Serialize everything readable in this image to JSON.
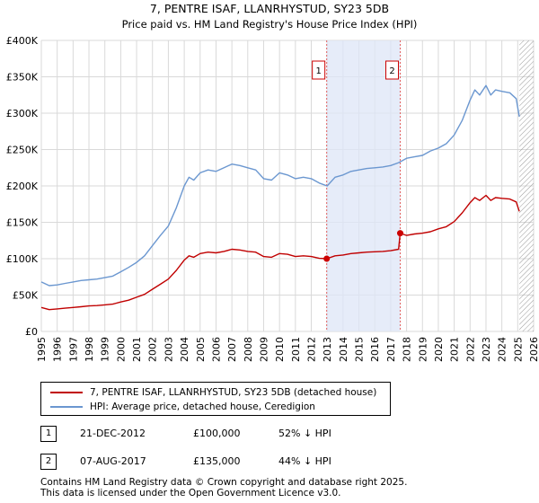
{
  "chart_data": {
    "type": "line",
    "title": "7, PENTRE ISAF, LLANRHYSTUD, SY23 5DB",
    "subtitle": "Price paid vs. HM Land Registry's House Price Index (HPI)",
    "xlim": [
      1995,
      2026
    ],
    "ylim": [
      0,
      400000
    ],
    "yticks": [
      0,
      50000,
      100000,
      150000,
      200000,
      250000,
      300000,
      350000,
      400000
    ],
    "ytick_labels": [
      "£0",
      "£50K",
      "£100K",
      "£150K",
      "£200K",
      "£250K",
      "£300K",
      "£350K",
      "£400K"
    ],
    "xticks": [
      1995,
      1996,
      1997,
      1998,
      1999,
      2000,
      2001,
      2002,
      2003,
      2004,
      2005,
      2006,
      2007,
      2008,
      2009,
      2010,
      2011,
      2012,
      2013,
      2014,
      2015,
      2016,
      2017,
      2018,
      2019,
      2020,
      2021,
      2022,
      2023,
      2024,
      2025,
      2026
    ],
    "xtick_labels": [
      "1995",
      "1996",
      "1997",
      "1998",
      "1999",
      "2000",
      "2001",
      "2002",
      "2003",
      "2004",
      "2005",
      "2006",
      "2007",
      "2008",
      "2009",
      "2010",
      "2011",
      "2012",
      "2013",
      "2014",
      "2015",
      "2016",
      "2017",
      "2018",
      "2019",
      "2020",
      "2021",
      "2022",
      "2023",
      "2024",
      "2025",
      "2026"
    ],
    "grid": true,
    "shaded_region": {
      "from": 2012.97,
      "to": 2017.6,
      "color": "#dde6f7"
    },
    "future_hatch_from": 2025.1,
    "series": [
      {
        "name": "HPI: Average price, detached house, Ceredigion",
        "color": "#6b97d0",
        "x": [
          1995.0,
          1995.5,
          1996.0,
          1996.5,
          1997.0,
          1997.5,
          1998.0,
          1998.5,
          1999.0,
          1999.5,
          2000.0,
          2000.5,
          2001.0,
          2001.5,
          2002.0,
          2002.5,
          2003.0,
          2003.5,
          2004.0,
          2004.3,
          2004.6,
          2005.0,
          2005.5,
          2006.0,
          2006.5,
          2007.0,
          2007.5,
          2008.0,
          2008.5,
          2009.0,
          2009.5,
          2010.0,
          2010.5,
          2011.0,
          2011.5,
          2012.0,
          2012.5,
          2013.0,
          2013.5,
          2014.0,
          2014.5,
          2015.0,
          2015.5,
          2016.0,
          2016.5,
          2017.0,
          2017.5,
          2018.0,
          2018.5,
          2019.0,
          2019.5,
          2020.0,
          2020.5,
          2021.0,
          2021.5,
          2022.0,
          2022.3,
          2022.6,
          2023.0,
          2023.3,
          2023.6,
          2024.0,
          2024.5,
          2024.9,
          2025.1
        ],
        "values": [
          68000,
          63000,
          64000,
          66000,
          68000,
          70000,
          71000,
          72000,
          74000,
          76000,
          82000,
          88000,
          95000,
          104000,
          118000,
          132000,
          145000,
          170000,
          200000,
          212000,
          208000,
          218000,
          222000,
          220000,
          225000,
          230000,
          228000,
          225000,
          222000,
          210000,
          208000,
          218000,
          215000,
          210000,
          212000,
          210000,
          204000,
          200000,
          212000,
          215000,
          220000,
          222000,
          224000,
          225000,
          226000,
          228000,
          232000,
          238000,
          240000,
          242000,
          248000,
          252000,
          258000,
          270000,
          290000,
          318000,
          332000,
          325000,
          338000,
          325000,
          332000,
          330000,
          328000,
          320000,
          295000
        ]
      },
      {
        "name": "7, PENTRE ISAF, LLANRHYSTUD, SY23 5DB (detached house)",
        "color": "#c00000",
        "x": [
          1995.0,
          1995.5,
          1996.0,
          1996.5,
          1997.0,
          1997.5,
          1998.0,
          1998.5,
          1999.0,
          1999.5,
          2000.0,
          2000.5,
          2001.0,
          2001.5,
          2002.0,
          2002.5,
          2003.0,
          2003.5,
          2004.0,
          2004.3,
          2004.6,
          2005.0,
          2005.5,
          2006.0,
          2006.5,
          2007.0,
          2007.5,
          2008.0,
          2008.5,
          2009.0,
          2009.5,
          2010.0,
          2010.5,
          2011.0,
          2011.5,
          2012.0,
          2012.5,
          2012.97,
          2013.5,
          2014.0,
          2014.5,
          2015.0,
          2015.5,
          2016.0,
          2016.5,
          2017.0,
          2017.5,
          2017.6,
          2018.0,
          2018.5,
          2019.0,
          2019.5,
          2020.0,
          2020.5,
          2021.0,
          2021.5,
          2022.0,
          2022.3,
          2022.6,
          2023.0,
          2023.3,
          2023.6,
          2024.0,
          2024.5,
          2024.9,
          2025.1
        ],
        "values": [
          33000,
          30000,
          31000,
          32000,
          33000,
          34000,
          35000,
          35500,
          36500,
          37500,
          40500,
          43000,
          47000,
          51000,
          58000,
          65000,
          72000,
          84000,
          98000,
          104000,
          102000,
          107000,
          109000,
          108000,
          110000,
          113000,
          112000,
          110000,
          109000,
          103000,
          102000,
          107000,
          106000,
          103000,
          104000,
          103000,
          100500,
          100000,
          104000,
          105000,
          107000,
          108000,
          109000,
          109500,
          110000,
          111000,
          113000,
          135000,
          132000,
          134000,
          135000,
          137000,
          141000,
          144000,
          151000,
          163000,
          177000,
          184000,
          180000,
          187000,
          180000,
          184000,
          183000,
          182000,
          178000,
          165000
        ]
      }
    ],
    "sales": [
      {
        "label": "1",
        "x": 2012.97,
        "y": 100000,
        "date": "21-DEC-2012",
        "price": "£100,000",
        "hpi": "52% ↓ HPI"
      },
      {
        "label": "2",
        "x": 2017.6,
        "y": 135000,
        "date": "07-AUG-2017",
        "price": "£135,000",
        "hpi": "44% ↓ HPI"
      }
    ]
  },
  "legend": {
    "property_label": "7, PENTRE ISAF, LLANRHYSTUD, SY23 5DB (detached house)",
    "hpi_label": "HPI: Average price, detached house, Ceredigion"
  },
  "footer": {
    "line1": "Contains HM Land Registry data © Crown copyright and database right 2025.",
    "line2": "This data is licensed under the Open Government Licence v3.0."
  }
}
